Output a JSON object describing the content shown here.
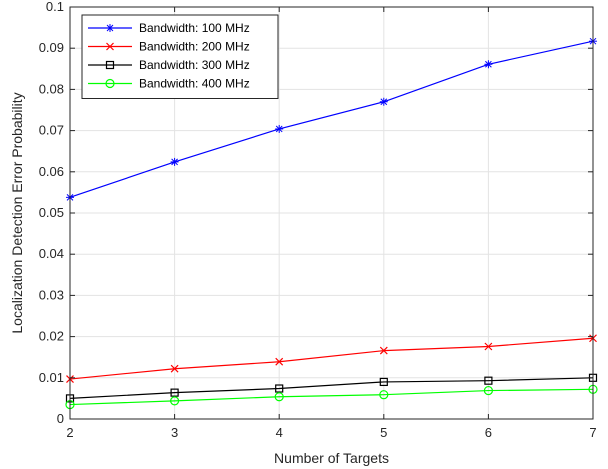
{
  "chart_data": {
    "type": "line",
    "xlabel": "Number of Targets",
    "ylabel": "Localization Detection Error Probability",
    "xlim": [
      2,
      7
    ],
    "ylim": [
      0,
      0.1
    ],
    "x": [
      2,
      3,
      4,
      5,
      6,
      7
    ],
    "xticks": [
      2,
      3,
      4,
      5,
      6,
      7
    ],
    "yticks": [
      0,
      0.01,
      0.02,
      0.03,
      0.04,
      0.05,
      0.06,
      0.07,
      0.08,
      0.09,
      0.1
    ],
    "ytick_labels": [
      "0",
      "0.01",
      "0.02",
      "0.03",
      "0.04",
      "0.05",
      "0.06",
      "0.07",
      "0.08",
      "0.09",
      "0.1"
    ],
    "grid": true,
    "legend_position": "top-left",
    "series": [
      {
        "name": "Bandwidth: 100 MHz",
        "color": "#0000ff",
        "marker": "asterisk",
        "values": [
          0.0538,
          0.0624,
          0.0704,
          0.077,
          0.0861,
          0.0917
        ]
      },
      {
        "name": "Bandwidth: 200 MHz",
        "color": "#ff0000",
        "marker": "x",
        "values": [
          0.0097,
          0.0122,
          0.0139,
          0.0166,
          0.0176,
          0.0196
        ]
      },
      {
        "name": "Bandwidth: 300 MHz",
        "color": "#000000",
        "marker": "square",
        "values": [
          0.005,
          0.0064,
          0.0074,
          0.009,
          0.0093,
          0.01
        ]
      },
      {
        "name": "Bandwidth: 400 MHz",
        "color": "#00ff00",
        "marker": "circle",
        "values": [
          0.0035,
          0.0044,
          0.0054,
          0.0059,
          0.0069,
          0.0072
        ]
      }
    ]
  }
}
